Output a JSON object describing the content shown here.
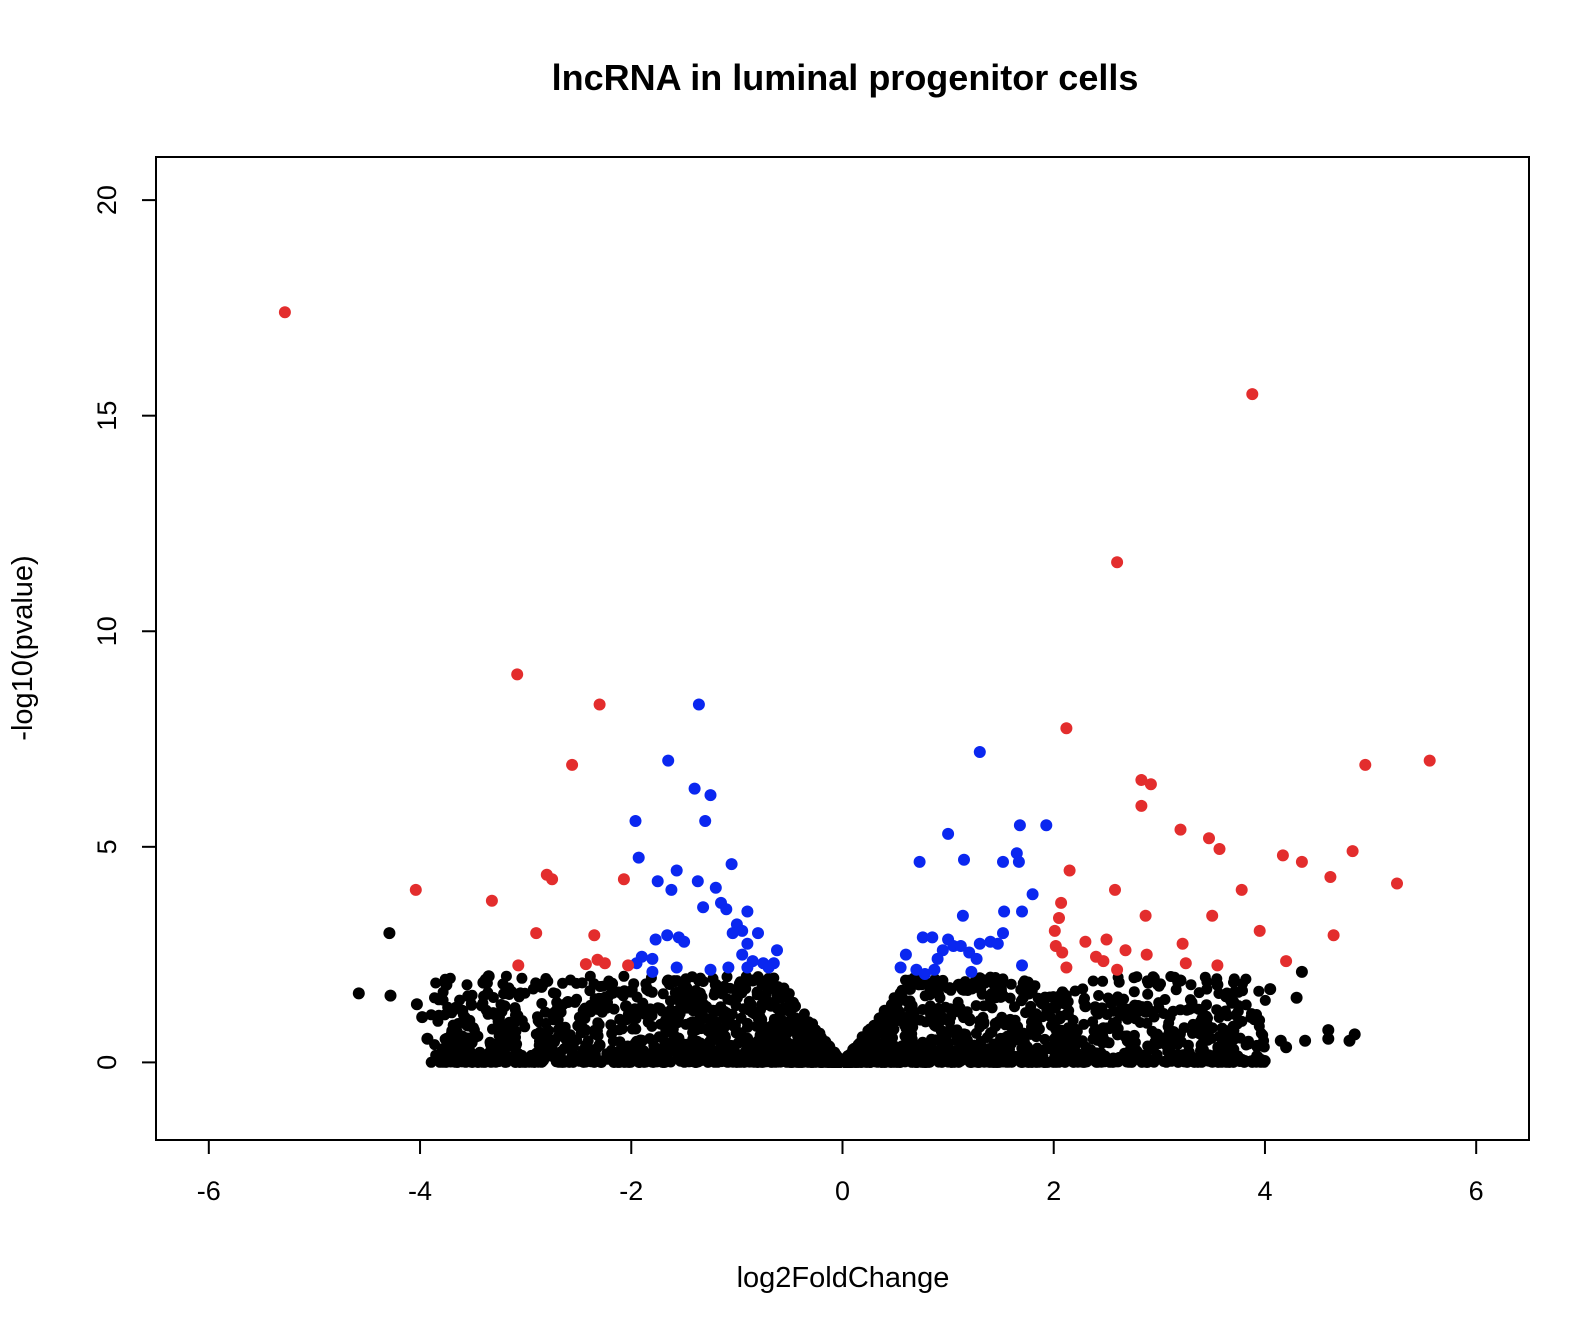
{
  "chart_data": {
    "type": "scatter",
    "title": "lncRNA in luminal progenitor cells",
    "xlabel": "log2FoldChange",
    "ylabel": "-log10(pvalue)",
    "xlim": [
      -6.5,
      6.5
    ],
    "ylim": [
      -1.8,
      21
    ],
    "xticks": [
      "-6",
      "-4",
      "-2",
      "0",
      "2",
      "4",
      "6"
    ],
    "yticks": [
      "0",
      "5",
      "10",
      "15",
      "20"
    ],
    "grid": false,
    "legend": "none",
    "colors": {
      "significant_large_fc": "#e32d2d",
      "significant_small_fc": "#0a27f0",
      "not_significant": "#000000"
    },
    "series": [
      {
        "color_role": "significant_large_fc",
        "points": [
          [
            -5.28,
            17.4
          ],
          [
            -3.08,
            9.0
          ],
          [
            -2.3,
            8.3
          ],
          [
            -2.56,
            6.9
          ],
          [
            -4.04,
            4.0
          ],
          [
            -3.32,
            3.75
          ],
          [
            -2.8,
            4.35
          ],
          [
            -2.75,
            4.25
          ],
          [
            -2.07,
            4.25
          ],
          [
            -2.9,
            3.0
          ],
          [
            -2.35,
            2.95
          ],
          [
            -3.07,
            2.25
          ],
          [
            -2.43,
            2.28
          ],
          [
            -2.32,
            2.38
          ],
          [
            -2.25,
            2.3
          ],
          [
            -2.03,
            2.25
          ],
          [
            3.88,
            15.5
          ],
          [
            2.6,
            11.6
          ],
          [
            2.12,
            7.75
          ],
          [
            2.83,
            6.55
          ],
          [
            2.92,
            6.45
          ],
          [
            2.83,
            5.95
          ],
          [
            3.2,
            5.4
          ],
          [
            3.47,
            5.2
          ],
          [
            3.57,
            4.95
          ],
          [
            4.95,
            6.9
          ],
          [
            5.56,
            7.0
          ],
          [
            4.83,
            4.9
          ],
          [
            4.17,
            4.8
          ],
          [
            4.35,
            4.65
          ],
          [
            4.62,
            4.3
          ],
          [
            5.25,
            4.15
          ],
          [
            2.15,
            4.45
          ],
          [
            2.58,
            4.0
          ],
          [
            3.78,
            4.0
          ],
          [
            2.07,
            3.7
          ],
          [
            2.05,
            3.35
          ],
          [
            2.87,
            3.4
          ],
          [
            3.5,
            3.4
          ],
          [
            3.95,
            3.05
          ],
          [
            4.65,
            2.95
          ],
          [
            2.01,
            3.05
          ],
          [
            2.02,
            2.7
          ],
          [
            2.08,
            2.55
          ],
          [
            2.3,
            2.8
          ],
          [
            2.5,
            2.85
          ],
          [
            2.68,
            2.6
          ],
          [
            2.4,
            2.45
          ],
          [
            2.47,
            2.35
          ],
          [
            2.88,
            2.5
          ],
          [
            3.22,
            2.75
          ],
          [
            3.25,
            2.3
          ],
          [
            3.55,
            2.25
          ],
          [
            4.2,
            2.35
          ],
          [
            2.12,
            2.2
          ],
          [
            2.6,
            2.15
          ]
        ]
      },
      {
        "color_role": "significant_small_fc",
        "points": [
          [
            -1.36,
            8.3
          ],
          [
            -1.65,
            7.0
          ],
          [
            -1.4,
            6.35
          ],
          [
            -1.25,
            6.2
          ],
          [
            -1.3,
            5.6
          ],
          [
            -1.96,
            5.6
          ],
          [
            -1.93,
            4.75
          ],
          [
            -1.57,
            4.45
          ],
          [
            -1.05,
            4.6
          ],
          [
            -1.75,
            4.2
          ],
          [
            -1.37,
            4.2
          ],
          [
            -1.62,
            4.0
          ],
          [
            -1.2,
            4.05
          ],
          [
            -1.15,
            3.7
          ],
          [
            -1.32,
            3.6
          ],
          [
            -1.1,
            3.55
          ],
          [
            -0.9,
            3.5
          ],
          [
            -1.0,
            3.2
          ],
          [
            -0.95,
            3.05
          ],
          [
            -1.04,
            3.0
          ],
          [
            -0.8,
            3.0
          ],
          [
            -1.66,
            2.95
          ],
          [
            -1.77,
            2.85
          ],
          [
            -1.55,
            2.9
          ],
          [
            -1.5,
            2.8
          ],
          [
            -0.9,
            2.75
          ],
          [
            -0.62,
            2.6
          ],
          [
            -1.9,
            2.45
          ],
          [
            -1.8,
            2.4
          ],
          [
            -1.95,
            2.3
          ],
          [
            -0.95,
            2.5
          ],
          [
            -0.85,
            2.35
          ],
          [
            -0.75,
            2.3
          ],
          [
            -0.65,
            2.3
          ],
          [
            -0.7,
            2.2
          ],
          [
            -1.25,
            2.15
          ],
          [
            -1.8,
            2.1
          ],
          [
            -1.57,
            2.2
          ],
          [
            -1.08,
            2.2
          ],
          [
            -0.9,
            2.2
          ],
          [
            1.3,
            7.2
          ],
          [
            1.0,
            5.3
          ],
          [
            1.68,
            5.5
          ],
          [
            1.93,
            5.5
          ],
          [
            1.15,
            4.7
          ],
          [
            0.73,
            4.65
          ],
          [
            1.65,
            4.85
          ],
          [
            1.52,
            4.65
          ],
          [
            1.67,
            4.65
          ],
          [
            1.8,
            3.9
          ],
          [
            1.53,
            3.5
          ],
          [
            1.7,
            3.5
          ],
          [
            1.14,
            3.4
          ],
          [
            1.52,
            3.0
          ],
          [
            0.76,
            2.9
          ],
          [
            0.85,
            2.9
          ],
          [
            1.0,
            2.85
          ],
          [
            1.05,
            2.7
          ],
          [
            1.12,
            2.7
          ],
          [
            1.3,
            2.75
          ],
          [
            1.4,
            2.8
          ],
          [
            1.47,
            2.75
          ],
          [
            0.95,
            2.6
          ],
          [
            1.2,
            2.55
          ],
          [
            0.6,
            2.5
          ],
          [
            0.9,
            2.4
          ],
          [
            1.27,
            2.4
          ],
          [
            0.7,
            2.15
          ],
          [
            0.78,
            2.05
          ],
          [
            0.55,
            2.2
          ],
          [
            0.87,
            2.15
          ],
          [
            1.22,
            2.1
          ],
          [
            1.7,
            2.25
          ]
        ]
      },
      {
        "color_role": "not_significant",
        "points": [
          [
            -4.29,
            3.0
          ],
          [
            -4.58,
            1.6
          ],
          [
            -4.28,
            1.55
          ],
          [
            -4.03,
            1.35
          ],
          [
            -3.98,
            1.05
          ],
          [
            -3.93,
            0.55
          ],
          [
            -3.35,
            2.0
          ],
          [
            -3.4,
            1.85
          ],
          [
            -3.75,
            1.8
          ],
          [
            -3.6,
            1.2
          ],
          [
            -3.2,
            1.3
          ],
          [
            -3.05,
            1.6
          ],
          [
            -2.85,
            1.75
          ],
          [
            -2.6,
            1.4
          ],
          [
            -2.45,
            1.2
          ],
          [
            -2.25,
            1.5
          ],
          [
            -2.05,
            1.3
          ],
          [
            -1.85,
            1.7
          ],
          [
            -1.65,
            1.9
          ],
          [
            -1.5,
            1.4
          ],
          [
            -1.35,
            1.6
          ],
          [
            -1.2,
            1.8
          ],
          [
            -1.0,
            1.5
          ],
          [
            -0.85,
            1.9
          ],
          [
            -0.7,
            1.7
          ],
          [
            -0.55,
            1.6
          ],
          [
            -0.45,
            1.3
          ],
          [
            -0.35,
            0.9
          ],
          [
            -0.25,
            0.6
          ],
          [
            -0.15,
            0.35
          ],
          [
            -0.1,
            0.2
          ],
          [
            0.1,
            0.2
          ],
          [
            0.18,
            0.45
          ],
          [
            0.3,
            0.85
          ],
          [
            0.4,
            1.2
          ],
          [
            0.55,
            1.6
          ],
          [
            0.7,
            1.9
          ],
          [
            0.9,
            1.7
          ],
          [
            1.1,
            1.8
          ],
          [
            1.3,
            1.95
          ],
          [
            1.5,
            1.7
          ],
          [
            1.75,
            1.6
          ],
          [
            2.0,
            1.5
          ],
          [
            2.3,
            1.3
          ],
          [
            2.55,
            1.4
          ],
          [
            2.9,
            1.2
          ],
          [
            3.2,
            1.9
          ],
          [
            3.55,
            1.8
          ],
          [
            3.7,
            1.4
          ],
          [
            3.9,
            1.0
          ],
          [
            4.05,
            1.7
          ],
          [
            4.15,
            0.5
          ],
          [
            4.2,
            0.35
          ],
          [
            4.35,
            2.1
          ],
          [
            4.3,
            1.5
          ],
          [
            4.38,
            0.5
          ],
          [
            4.6,
            0.75
          ],
          [
            4.6,
            0.55
          ],
          [
            4.85,
            0.65
          ],
          [
            4.8,
            0.5
          ],
          [
            3.7,
            0.3
          ],
          [
            3.4,
            0.4
          ],
          [
            3.0,
            0.45
          ],
          [
            2.7,
            0.5
          ],
          [
            -3.6,
            0.6
          ],
          [
            -3.2,
            0.5
          ],
          [
            -2.8,
            0.55
          ],
          [
            -2.3,
            0.4
          ],
          [
            -1.9,
            0.5
          ]
        ]
      }
    ]
  }
}
